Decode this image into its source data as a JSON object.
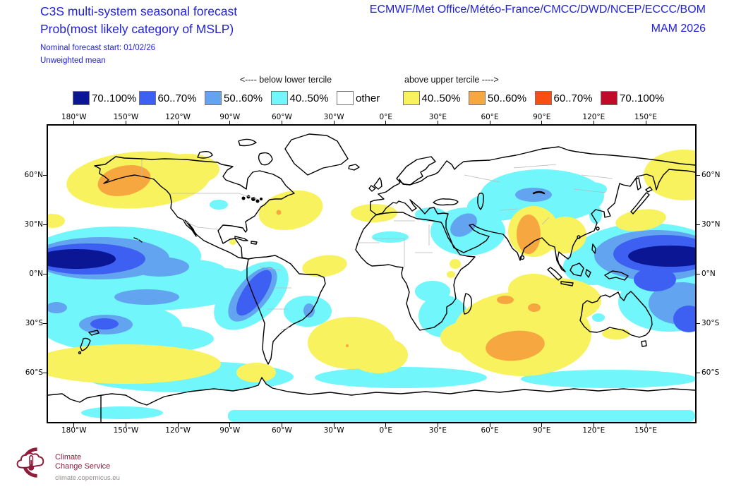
{
  "header": {
    "title_line1": "C3S multi-system seasonal forecast",
    "title_line2": "Prob(most likely category of MSLP)",
    "subtitle_line1": "Nominal forecast start: 01/02/26",
    "subtitle_line2": "Unweighted mean",
    "systems": "ECMWF/Met Office/Météo-France/CMCC/DWD/NCEP/ECCC/BOM",
    "season": "MAM 2026",
    "text_color": "#2121dd"
  },
  "legend": {
    "below_label": "<---- below lower tercile",
    "above_label": "above upper tercile ---->",
    "swatch_border": "#777777",
    "items": [
      {
        "range": "70..100%",
        "color": "#0a1694",
        "group": "below"
      },
      {
        "range": "60..70%",
        "color": "#3e60f2",
        "group": "below"
      },
      {
        "range": "50..60%",
        "color": "#63a4f0",
        "group": "below"
      },
      {
        "range": "40..50%",
        "color": "#70f6fb",
        "group": "below"
      },
      {
        "range": "other",
        "color": "#ffffff",
        "group": "other"
      },
      {
        "range": "40..50%",
        "color": "#f8f25e",
        "group": "above"
      },
      {
        "range": "50..60%",
        "color": "#f7a73f",
        "group": "above"
      },
      {
        "range": "60..70%",
        "color": "#f84e12",
        "group": "above"
      },
      {
        "range": "70..100%",
        "color": "#c00a28",
        "group": "above"
      }
    ]
  },
  "map": {
    "lon_min": -195,
    "lon_max": 178.5,
    "lat_min": -90,
    "lat_max": 90,
    "lon_ticks": [
      {
        "label": "180°W",
        "lon": -180
      },
      {
        "label": "150°W",
        "lon": -150
      },
      {
        "label": "120°W",
        "lon": -120
      },
      {
        "label": "90°W",
        "lon": -90
      },
      {
        "label": "60°W",
        "lon": -60
      },
      {
        "label": "30°W",
        "lon": -30
      },
      {
        "label": "0°E",
        "lon": 0
      },
      {
        "label": "30°E",
        "lon": 30
      },
      {
        "label": "60°E",
        "lon": 60
      },
      {
        "label": "90°E",
        "lon": 90
      },
      {
        "label": "120°E",
        "lon": 120
      },
      {
        "label": "150°E",
        "lon": 150
      }
    ],
    "lat_ticks": [
      {
        "label": "60°N",
        "lat": 60
      },
      {
        "label": "30°N",
        "lat": 30
      },
      {
        "label": "0°N",
        "lat": 0
      },
      {
        "label": "30°S",
        "lat": -30
      },
      {
        "label": "60°S",
        "lat": -60
      }
    ]
  },
  "footer": {
    "logo_line1": "Climate",
    "logo_line2": "Change Service",
    "logo_url_text": "climate.copernicus.eu",
    "logo_color": "#8e1c3c"
  },
  "chart_data": {
    "type": "heatmap",
    "title": "C3S multi-system seasonal forecast — Prob(most likely category of MSLP)",
    "season": "MAM 2026",
    "forecast_start": "01/02/26",
    "method": "Unweighted mean",
    "systems": [
      "ECMWF",
      "Met Office",
      "Météo-France",
      "CMCC",
      "DWD",
      "NCEP",
      "ECCC",
      "BOM"
    ],
    "projection": "equirectangular world map, lon -195..178.5, lat -90..90",
    "legend_below_lower_tercile": [
      "70..100%",
      "60..70%",
      "50..60%",
      "40..50%"
    ],
    "legend_above_upper_tercile": [
      "40..50%",
      "50..60%",
      "60..70%",
      "70..100%"
    ],
    "legend_other": "other",
    "regions": [
      {
        "area": "Gulf of Alaska / North Pacific",
        "signal": "above upper tercile",
        "prob": "40..50% broad, 50..60% core over Alaska"
      },
      {
        "area": "NE Siberia / Chukotka (map right edge)",
        "signal": "above upper tercile",
        "prob": "40..50%"
      },
      {
        "area": "Central tropical North Pacific (map left edge)",
        "signal": "below lower tercile",
        "prob": "70..100% core ringed by 60..70%, 50..60%, 40..50%"
      },
      {
        "area": "Western tropical Pacific (map right edge)",
        "signal": "below lower tercile",
        "prob": "70..100% core ringed by 60..70%, 50..60%, 40..50%"
      },
      {
        "area": "South tropical Pacific",
        "signal": "below lower tercile",
        "prob": "40..60%"
      },
      {
        "area": "South-central Pacific ~35S near New Zealand",
        "signal": "below lower tercile",
        "prob": "40..60%"
      },
      {
        "area": "Southern Pacific ~50S arc",
        "signal": "above upper tercile",
        "prob": "40..50%"
      },
      {
        "area": "Peru / SE Pacific coast",
        "signal": "below lower tercile",
        "prob": "60..70% core"
      },
      {
        "area": "Paraguay / central South America",
        "signal": "below lower tercile",
        "prob": "40..50% with 50..60% spot"
      },
      {
        "area": "US East Coast / NW Atlantic",
        "signal": "above upper tercile",
        "prob": "40..50% with 50..60% spot"
      },
      {
        "area": "Morocco / Gibraltar approaches",
        "signal": "above upper tercile",
        "prob": "40..50%"
      },
      {
        "area": "Northern Brazil",
        "signal": "above upper tercile",
        "prob": "40..50%"
      },
      {
        "area": "South Atlantic ~40S",
        "signal": "above upper tercile",
        "prob": "40..50%"
      },
      {
        "area": "Central Asia / Kazakhstan",
        "signal": "below lower tercile",
        "prob": "40..50% with 50..60% core"
      },
      {
        "area": "Middle East / Persian Gulf / Red Sea",
        "signal": "below lower tercile",
        "prob": "40..50% with 50..60% core"
      },
      {
        "area": "India",
        "signal": "above upper tercile",
        "prob": "50..60% core, 40..50% into SE Asia and south China"
      },
      {
        "area": "South Indian Ocean",
        "signal": "above upper tercile",
        "prob": "40..50% broad, 50..60% core"
      },
      {
        "area": "Seas south of Japan",
        "signal": "above upper tercile",
        "prob": "40..50%"
      },
      {
        "area": "Southern Ocean bands ~60S and polar edge",
        "signal": "below lower tercile",
        "prob": "40..50%"
      },
      {
        "area": "Tasman Sea SE of Australia",
        "signal": "below lower tercile",
        "prob": "40..50% with 60..70% spot"
      },
      {
        "area": "Sahel and southern Africa patches",
        "signal": "below lower tercile",
        "prob": "40..50%"
      }
    ]
  }
}
